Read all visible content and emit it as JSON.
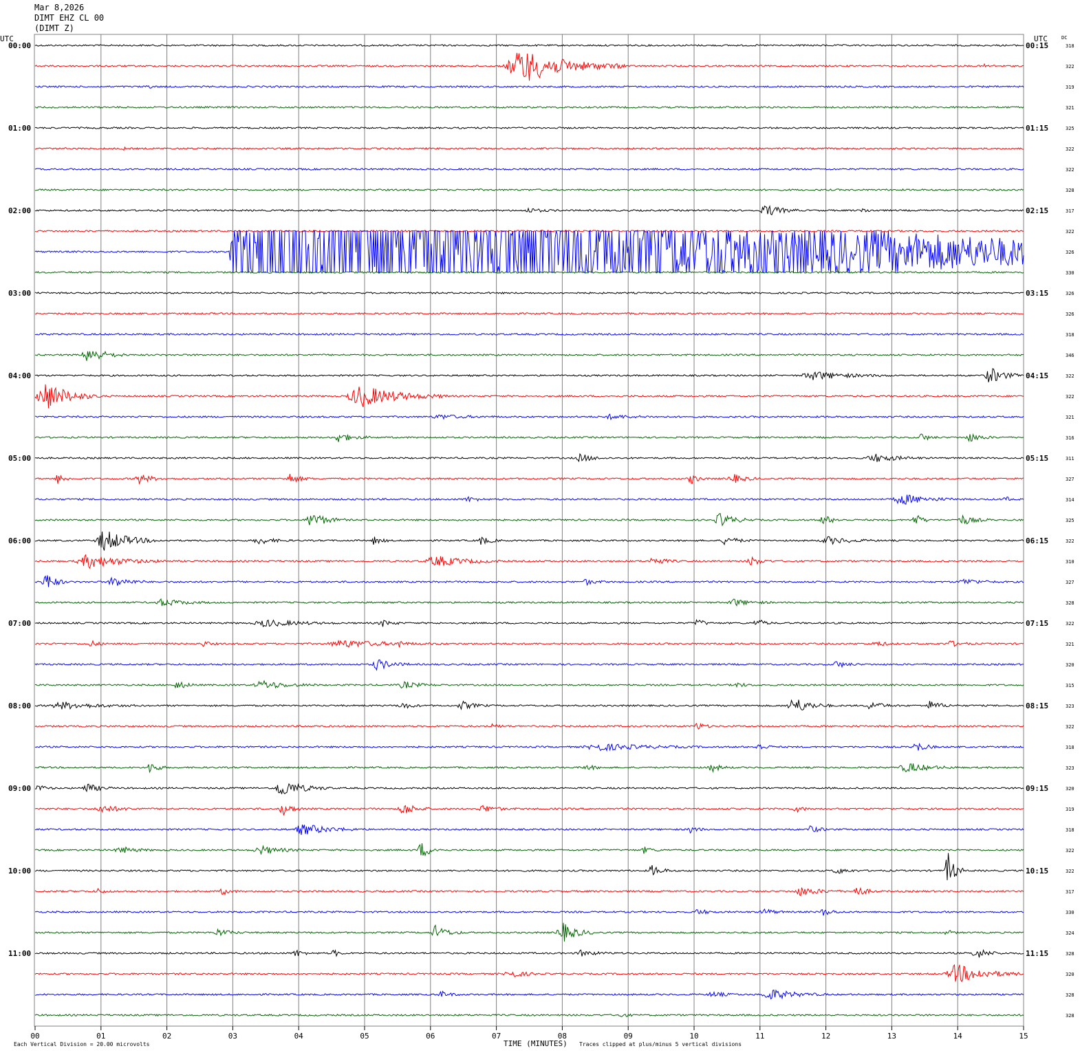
{
  "header": {
    "date": "Mar 8,2026",
    "channel": "DIMT EHZ CL 00",
    "station": "(DIMT Z)"
  },
  "labels": {
    "utc_left": "UTC",
    "utc_right": "UTC",
    "dc": "DC"
  },
  "footer": {
    "scale_note": "Each Vertical Division =   20.00 microvolts",
    "x_title": "TIME (MINUTES)",
    "clip_note": "Traces clipped at plus/minus 5 vertical divisions"
  },
  "colors": {
    "trace_cycle": [
      "#000000",
      "#ff0000",
      "#0000ff",
      "#006400"
    ],
    "grid": "#808080",
    "text": "#000000"
  },
  "chart_data": {
    "type": "line",
    "title": "",
    "xlabel": "TIME (MINUTES)",
    "ylabel": "",
    "xlim": [
      0,
      15
    ],
    "x_ticks": [
      "00",
      "01",
      "02",
      "03",
      "04",
      "05",
      "06",
      "07",
      "08",
      "09",
      "10",
      "11",
      "12",
      "13",
      "14",
      "15"
    ],
    "grid": true,
    "rows_per_hour": 4,
    "left_time_labels": [
      "00:00",
      "01:00",
      "02:00",
      "03:00",
      "04:00",
      "05:00",
      "06:00",
      "07:00",
      "08:00",
      "09:00",
      "10:00",
      "11:00"
    ],
    "right_time_labels": [
      "00:15",
      "01:15",
      "02:15",
      "03:15",
      "04:15",
      "05:15",
      "06:15",
      "07:15",
      "08:15",
      "09:15",
      "10:15",
      "11:15"
    ],
    "dc_offsets": [
      318,
      322,
      319,
      321,
      325,
      322,
      322,
      328,
      317,
      322,
      326,
      330,
      326,
      326,
      318,
      346,
      322,
      322,
      321,
      316,
      311,
      327,
      314,
      325,
      322,
      310,
      327,
      328,
      322,
      321,
      320,
      315,
      323,
      322,
      318,
      323,
      320,
      319,
      318,
      322,
      322,
      317,
      330,
      324,
      328,
      320,
      328,
      328
    ],
    "clip_divisions": 5,
    "microvolts_per_division": 20.0,
    "noise_amplitude": 1.2,
    "events": [
      {
        "row": 1,
        "start": 7.1,
        "duration": 1.9,
        "amp": 25
      },
      {
        "row": 1,
        "start": 14.35,
        "duration": 0.3,
        "amp": 2
      },
      {
        "row": 2,
        "start": 1.68,
        "duration": 0.1,
        "amp": 8
      },
      {
        "row": 5,
        "start": 1.33,
        "duration": 0.05,
        "amp": 4
      },
      {
        "row": 8,
        "start": 7.4,
        "duration": 0.6,
        "amp": 3
      },
      {
        "row": 8,
        "start": 11.0,
        "duration": 0.6,
        "amp": 9
      },
      {
        "row": 8,
        "start": 12.5,
        "duration": 0.3,
        "amp": 3
      },
      {
        "row": 10,
        "start": 2.95,
        "duration": 12.05,
        "amp": 300,
        "decay": 0.23
      },
      {
        "row": 15,
        "start": 0.7,
        "duration": 0.7,
        "amp": 12
      },
      {
        "row": 16,
        "start": 11.6,
        "duration": 1.4,
        "amp": 6
      },
      {
        "row": 16,
        "start": 14.4,
        "duration": 0.6,
        "amp": 12
      },
      {
        "row": 17,
        "start": 0.0,
        "duration": 1.0,
        "amp": 22
      },
      {
        "row": 17,
        "start": 4.7,
        "duration": 1.6,
        "amp": 16
      },
      {
        "row": 18,
        "start": 6.0,
        "duration": 1.0,
        "amp": 3
      },
      {
        "row": 18,
        "start": 8.6,
        "duration": 0.9,
        "amp": 3
      },
      {
        "row": 19,
        "start": 4.5,
        "duration": 0.6,
        "amp": 7
      },
      {
        "row": 19,
        "start": 13.4,
        "duration": 0.3,
        "amp": 6
      },
      {
        "row": 19,
        "start": 14.1,
        "duration": 0.5,
        "amp": 6
      },
      {
        "row": 20,
        "start": 8.2,
        "duration": 0.5,
        "amp": 6
      },
      {
        "row": 20,
        "start": 12.6,
        "duration": 0.9,
        "amp": 6
      },
      {
        "row": 21,
        "start": 0.3,
        "duration": 0.3,
        "amp": 7
      },
      {
        "row": 21,
        "start": 1.5,
        "duration": 0.5,
        "amp": 7
      },
      {
        "row": 21,
        "start": 3.8,
        "duration": 0.4,
        "amp": 8
      },
      {
        "row": 21,
        "start": 9.9,
        "duration": 0.3,
        "amp": 8
      },
      {
        "row": 21,
        "start": 10.5,
        "duration": 0.5,
        "amp": 7
      },
      {
        "row": 22,
        "start": 6.5,
        "duration": 0.4,
        "amp": 4
      },
      {
        "row": 22,
        "start": 13.0,
        "duration": 1.0,
        "amp": 8
      },
      {
        "row": 22,
        "start": 14.7,
        "duration": 0.1,
        "amp": 10
      },
      {
        "row": 23,
        "start": 4.1,
        "duration": 0.6,
        "amp": 12
      },
      {
        "row": 23,
        "start": 10.3,
        "duration": 0.6,
        "amp": 10
      },
      {
        "row": 23,
        "start": 11.9,
        "duration": 0.4,
        "amp": 7
      },
      {
        "row": 23,
        "start": 13.3,
        "duration": 0.3,
        "amp": 10
      },
      {
        "row": 23,
        "start": 14.0,
        "duration": 0.5,
        "amp": 7
      },
      {
        "row": 24,
        "start": 0.9,
        "duration": 1.0,
        "amp": 16
      },
      {
        "row": 24,
        "start": 3.3,
        "duration": 0.6,
        "amp": 5
      },
      {
        "row": 24,
        "start": 5.1,
        "duration": 0.3,
        "amp": 6
      },
      {
        "row": 24,
        "start": 6.7,
        "duration": 0.4,
        "amp": 6
      },
      {
        "row": 24,
        "start": 10.4,
        "duration": 0.5,
        "amp": 6
      },
      {
        "row": 24,
        "start": 11.9,
        "duration": 0.9,
        "amp": 5
      },
      {
        "row": 25,
        "start": 0.6,
        "duration": 1.4,
        "amp": 10
      },
      {
        "row": 25,
        "start": 5.9,
        "duration": 1.2,
        "amp": 8
      },
      {
        "row": 25,
        "start": 9.3,
        "duration": 0.5,
        "amp": 6
      },
      {
        "row": 25,
        "start": 10.8,
        "duration": 0.4,
        "amp": 7
      },
      {
        "row": 26,
        "start": 0.1,
        "duration": 0.4,
        "amp": 14
      },
      {
        "row": 26,
        "start": 1.1,
        "duration": 0.6,
        "amp": 8
      },
      {
        "row": 26,
        "start": 8.3,
        "duration": 0.4,
        "amp": 4
      },
      {
        "row": 26,
        "start": 14.0,
        "duration": 0.7,
        "amp": 4
      },
      {
        "row": 27,
        "start": 1.8,
        "duration": 0.9,
        "amp": 5
      },
      {
        "row": 27,
        "start": 10.5,
        "duration": 0.7,
        "amp": 5
      },
      {
        "row": 28,
        "start": 3.3,
        "duration": 1.3,
        "amp": 5
      },
      {
        "row": 28,
        "start": 5.2,
        "duration": 0.4,
        "amp": 5
      },
      {
        "row": 28,
        "start": 10.0,
        "duration": 0.3,
        "amp": 6
      },
      {
        "row": 28,
        "start": 10.9,
        "duration": 0.3,
        "amp": 7
      },
      {
        "row": 29,
        "start": 0.8,
        "duration": 0.3,
        "amp": 5
      },
      {
        "row": 29,
        "start": 2.5,
        "duration": 0.3,
        "amp": 4
      },
      {
        "row": 29,
        "start": 4.4,
        "duration": 1.8,
        "amp": 5
      },
      {
        "row": 29,
        "start": 5.5,
        "duration": 0.1,
        "amp": 10
      },
      {
        "row": 29,
        "start": 12.7,
        "duration": 0.4,
        "amp": 4
      },
      {
        "row": 29,
        "start": 13.8,
        "duration": 0.5,
        "amp": 4
      },
      {
        "row": 30,
        "start": 5.1,
        "duration": 0.6,
        "amp": 8
      },
      {
        "row": 30,
        "start": 12.1,
        "duration": 0.4,
        "amp": 5
      },
      {
        "row": 31,
        "start": 2.1,
        "duration": 0.4,
        "amp": 6
      },
      {
        "row": 31,
        "start": 3.3,
        "duration": 1.0,
        "amp": 6
      },
      {
        "row": 31,
        "start": 5.5,
        "duration": 0.6,
        "amp": 5
      },
      {
        "row": 31,
        "start": 10.6,
        "duration": 0.3,
        "amp": 4
      },
      {
        "row": 32,
        "start": 0.2,
        "duration": 1.4,
        "amp": 5
      },
      {
        "row": 32,
        "start": 5.5,
        "duration": 0.4,
        "amp": 5
      },
      {
        "row": 32,
        "start": 6.4,
        "duration": 0.5,
        "amp": 6
      },
      {
        "row": 32,
        "start": 11.4,
        "duration": 0.7,
        "amp": 12
      },
      {
        "row": 32,
        "start": 12.6,
        "duration": 0.5,
        "amp": 6
      },
      {
        "row": 32,
        "start": 13.5,
        "duration": 0.5,
        "amp": 6
      },
      {
        "row": 33,
        "start": 6.9,
        "duration": 0.3,
        "amp": 3
      },
      {
        "row": 33,
        "start": 10.0,
        "duration": 0.3,
        "amp": 6
      },
      {
        "row": 34,
        "start": 8.3,
        "duration": 1.8,
        "amp": 5
      },
      {
        "row": 34,
        "start": 10.9,
        "duration": 0.4,
        "amp": 5
      },
      {
        "row": 34,
        "start": 13.3,
        "duration": 0.4,
        "amp": 8
      },
      {
        "row": 35,
        "start": 1.7,
        "duration": 0.3,
        "amp": 10
      },
      {
        "row": 35,
        "start": 8.3,
        "duration": 0.4,
        "amp": 4
      },
      {
        "row": 35,
        "start": 10.2,
        "duration": 0.4,
        "amp": 6
      },
      {
        "row": 35,
        "start": 13.1,
        "duration": 0.9,
        "amp": 7
      },
      {
        "row": 36,
        "start": 0.0,
        "duration": 0.3,
        "amp": 5
      },
      {
        "row": 36,
        "start": 0.7,
        "duration": 0.5,
        "amp": 7
      },
      {
        "row": 36,
        "start": 3.6,
        "duration": 0.9,
        "amp": 12
      },
      {
        "row": 37,
        "start": 0.9,
        "duration": 0.7,
        "amp": 6
      },
      {
        "row": 37,
        "start": 3.7,
        "duration": 0.4,
        "amp": 10
      },
      {
        "row": 37,
        "start": 5.5,
        "duration": 0.5,
        "amp": 10
      },
      {
        "row": 37,
        "start": 6.7,
        "duration": 0.6,
        "amp": 5
      },
      {
        "row": 37,
        "start": 11.5,
        "duration": 0.3,
        "amp": 5
      },
      {
        "row": 38,
        "start": 3.9,
        "duration": 1.1,
        "amp": 8
      },
      {
        "row": 38,
        "start": 9.9,
        "duration": 0.3,
        "amp": 5
      },
      {
        "row": 38,
        "start": 11.7,
        "duration": 0.4,
        "amp": 5
      },
      {
        "row": 39,
        "start": 1.2,
        "duration": 0.6,
        "amp": 5
      },
      {
        "row": 39,
        "start": 3.3,
        "duration": 0.8,
        "amp": 6
      },
      {
        "row": 39,
        "start": 5.8,
        "duration": 0.4,
        "amp": 12
      },
      {
        "row": 39,
        "start": 9.2,
        "duration": 0.3,
        "amp": 5
      },
      {
        "row": 40,
        "start": 9.3,
        "duration": 0.4,
        "amp": 8
      },
      {
        "row": 40,
        "start": 12.1,
        "duration": 0.4,
        "amp": 5
      },
      {
        "row": 40,
        "start": 13.8,
        "duration": 0.3,
        "amp": 28
      },
      {
        "row": 41,
        "start": 0.9,
        "duration": 0.3,
        "amp": 4
      },
      {
        "row": 41,
        "start": 2.8,
        "duration": 0.3,
        "amp": 5
      },
      {
        "row": 41,
        "start": 11.5,
        "duration": 0.8,
        "amp": 6
      },
      {
        "row": 41,
        "start": 12.4,
        "duration": 0.4,
        "amp": 8
      },
      {
        "row": 42,
        "start": 10.0,
        "duration": 0.4,
        "amp": 4
      },
      {
        "row": 42,
        "start": 11.0,
        "duration": 0.4,
        "amp": 5
      },
      {
        "row": 42,
        "start": 11.9,
        "duration": 0.4,
        "amp": 5
      },
      {
        "row": 43,
        "start": 2.7,
        "duration": 0.5,
        "amp": 5
      },
      {
        "row": 43,
        "start": 6.0,
        "duration": 0.5,
        "amp": 10
      },
      {
        "row": 43,
        "start": 7.9,
        "duration": 0.6,
        "amp": 15
      },
      {
        "row": 43,
        "start": 13.8,
        "duration": 0.2,
        "amp": 5
      },
      {
        "row": 44,
        "start": 3.9,
        "duration": 0.3,
        "amp": 6
      },
      {
        "row": 44,
        "start": 4.5,
        "duration": 0.2,
        "amp": 6
      },
      {
        "row": 44,
        "start": 8.2,
        "duration": 0.6,
        "amp": 4
      },
      {
        "row": 44,
        "start": 14.2,
        "duration": 0.5,
        "amp": 8
      },
      {
        "row": 45,
        "start": 7.1,
        "duration": 0.6,
        "amp": 6
      },
      {
        "row": 45,
        "start": 13.8,
        "duration": 1.2,
        "amp": 14
      },
      {
        "row": 46,
        "start": 6.1,
        "duration": 0.4,
        "amp": 4
      },
      {
        "row": 46,
        "start": 10.2,
        "duration": 0.5,
        "amp": 4
      },
      {
        "row": 46,
        "start": 11.0,
        "duration": 1.0,
        "amp": 8
      },
      {
        "row": 47,
        "start": 8.8,
        "duration": 0.3,
        "amp": 4
      }
    ]
  }
}
